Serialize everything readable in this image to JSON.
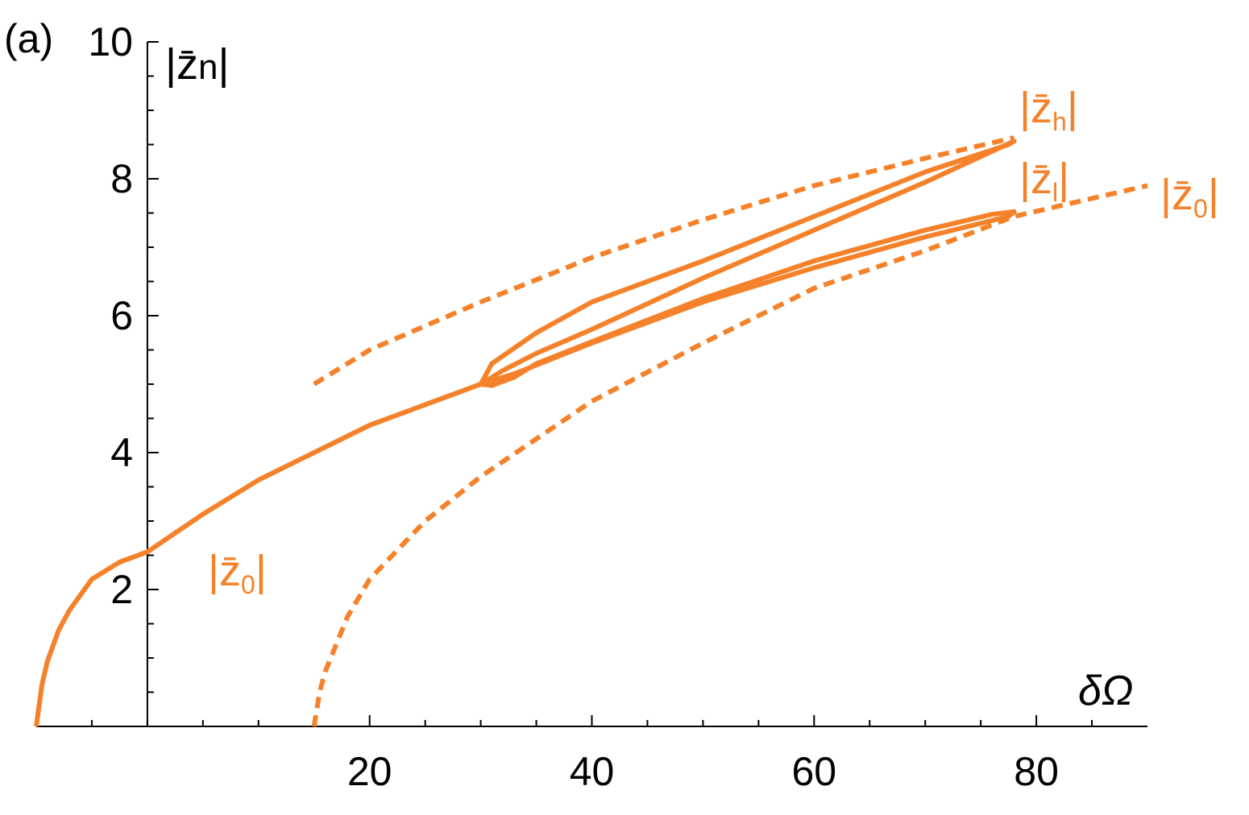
{
  "chart_data": {
    "type": "line",
    "panel_label": "(a)",
    "y_label": [
      "|z̄",
      "n",
      "|"
    ],
    "x_label": "δΩ",
    "xlim": [
      -10,
      90
    ],
    "ylim": [
      0,
      10
    ],
    "xticks": [
      20,
      40,
      60,
      80
    ],
    "yticks": [
      2,
      4,
      6,
      8,
      10
    ],
    "xminorticks": [
      -5,
      0,
      5,
      10,
      15,
      25,
      30,
      35,
      45,
      50,
      55,
      65,
      70,
      75,
      85
    ],
    "yminorticks": [
      0.5,
      1,
      1.5,
      2.5,
      3,
      3.5,
      4.5,
      5,
      5.5,
      6.5,
      7,
      7.5,
      8.5,
      9,
      9.5
    ],
    "series": [
      {
        "color": "#f5822a",
        "style": "solid",
        "x": [
          -10,
          -9.5,
          -9,
          -8,
          -7,
          -5,
          -2.5,
          0,
          5,
          10,
          15,
          20,
          25,
          30
        ],
        "values": [
          0,
          0.6,
          0.95,
          1.4,
          1.7,
          2.15,
          2.4,
          2.55,
          3.1,
          3.6,
          4.0,
          4.4,
          4.7,
          5.0
        ]
      },
      {
        "color": "#f5822a",
        "style": "solid",
        "x": [
          30,
          32,
          35,
          40,
          50,
          60,
          70,
          76,
          78,
          77.5,
          70,
          60,
          50,
          40,
          35,
          31,
          30
        ],
        "values": [
          5.0,
          5.2,
          5.45,
          5.8,
          6.55,
          7.25,
          7.95,
          8.4,
          8.55,
          8.5,
          8.1,
          7.45,
          6.8,
          6.2,
          5.75,
          5.3,
          5.0
        ]
      },
      {
        "color": "#f5822a",
        "style": "solid",
        "x": [
          30,
          31,
          33,
          35,
          40,
          50,
          60,
          70,
          76,
          78,
          77.5,
          70,
          60,
          50,
          40,
          33,
          30
        ],
        "values": [
          5.0,
          4.98,
          5.1,
          5.3,
          5.62,
          6.25,
          6.8,
          7.25,
          7.48,
          7.52,
          7.45,
          7.15,
          6.7,
          6.2,
          5.6,
          5.15,
          5.0
        ]
      },
      {
        "color": "#f5822a",
        "style": "dashed",
        "x": [
          15,
          20,
          30,
          40,
          50,
          60,
          70,
          78
        ],
        "values": [
          5.0,
          5.5,
          6.2,
          6.85,
          7.4,
          7.9,
          8.3,
          8.6
        ]
      },
      {
        "color": "#f5822a",
        "style": "dashed",
        "x": [
          15,
          15.5,
          16,
          18,
          20,
          25,
          30,
          40,
          50,
          60,
          70,
          78,
          90
        ],
        "values": [
          0,
          0.5,
          0.8,
          1.6,
          2.15,
          3.0,
          3.65,
          4.75,
          5.6,
          6.4,
          6.95,
          7.45,
          7.9
        ]
      }
    ],
    "annotations": [
      {
        "color": "#f5822a",
        "text": [
          "|z̄",
          "0",
          "|"
        ]
      },
      {
        "color": "#f5822a",
        "text": [
          "|z̄",
          "h",
          "|"
        ]
      },
      {
        "color": "#f5822a",
        "text": [
          "|z̄",
          "l",
          "|"
        ]
      },
      {
        "color": "#f5822a",
        "text": [
          "|z̄",
          "0",
          "|"
        ]
      }
    ]
  }
}
